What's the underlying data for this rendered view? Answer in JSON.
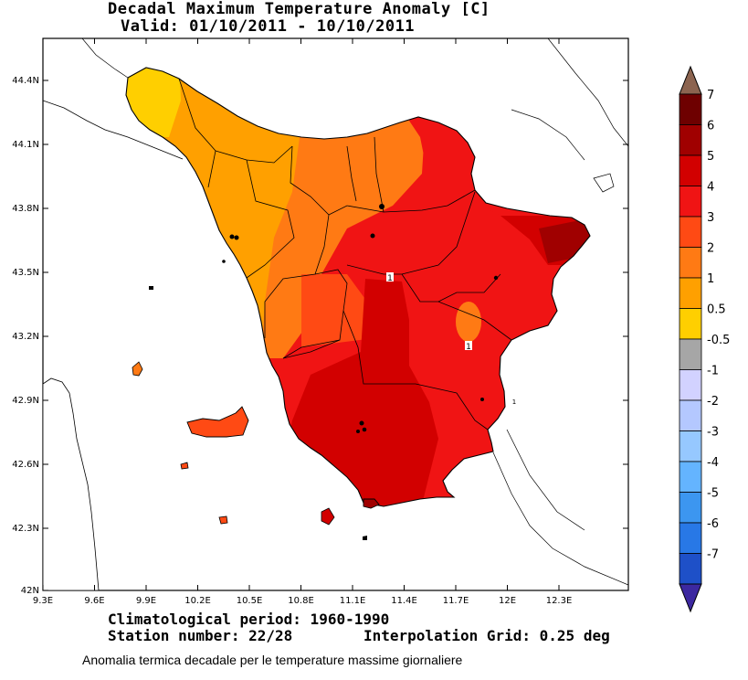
{
  "title": {
    "line1": "Decadal Maximum Temperature Anomaly [C]",
    "line2": "Valid: 01/10/2011 - 10/10/2011"
  },
  "footer": {
    "period": "Climatological period: 1960-1990",
    "station": "Station number: 22/28",
    "grid": "Interpolation Grid: 0.25 deg"
  },
  "caption": "Anomalia termica decadale per le temperature massime giornaliere",
  "axes": {
    "lat_ticks": [
      "44.4N",
      "44.1N",
      "43.8N",
      "43.5N",
      "43.2N",
      "42.9N",
      "42.6N",
      "42.3N",
      "42N"
    ],
    "lon_ticks": [
      "9.3E",
      "9.6E",
      "9.9E",
      "10.2E",
      "10.5E",
      "10.8E",
      "11.1E",
      "11.4E",
      "11.7E",
      "12E",
      "12.3E"
    ]
  },
  "legend": {
    "levels": [
      {
        "label": "7",
        "color": "#6e0000"
      },
      {
        "label": "6",
        "color": "#a00000"
      },
      {
        "label": "5",
        "color": "#d20000"
      },
      {
        "label": "4",
        "color": "#f01414"
      },
      {
        "label": "3",
        "color": "#ff4a14"
      },
      {
        "label": "2",
        "color": "#ff7a14"
      },
      {
        "label": "1",
        "color": "#ffa000"
      },
      {
        "label": "0.5",
        "color": "#ffcf00"
      },
      {
        "label": "-0.5",
        "color": "#a6a6a6"
      },
      {
        "label": "-1",
        "color": "#d2d2ff"
      },
      {
        "label": "-2",
        "color": "#b4c8ff"
      },
      {
        "label": "-3",
        "color": "#96c8ff"
      },
      {
        "label": "-4",
        "color": "#64b4ff"
      },
      {
        "label": "-5",
        "color": "#3c96f0"
      },
      {
        "label": "-6",
        "color": "#2878e6"
      },
      {
        "label": "-7",
        "color": "#1e50c8"
      }
    ],
    "below_color": "#3232b4",
    "above_color": "#8c6450",
    "bottom_arrow_color": "#3c28a0"
  },
  "map": {
    "region": "Tuscany",
    "colors": {
      "land_outline": "#000000",
      "sea": "#ffffff",
      "cat_0_5": "#ffcf00",
      "cat_1": "#ffa000",
      "cat_2": "#ff7a14",
      "cat_3": "#ff4a14",
      "cat_4": "#f01414",
      "cat_5": "#d20000",
      "cat_6": "#a00000"
    },
    "station_markers": [
      "1",
      "1",
      "1"
    ]
  }
}
